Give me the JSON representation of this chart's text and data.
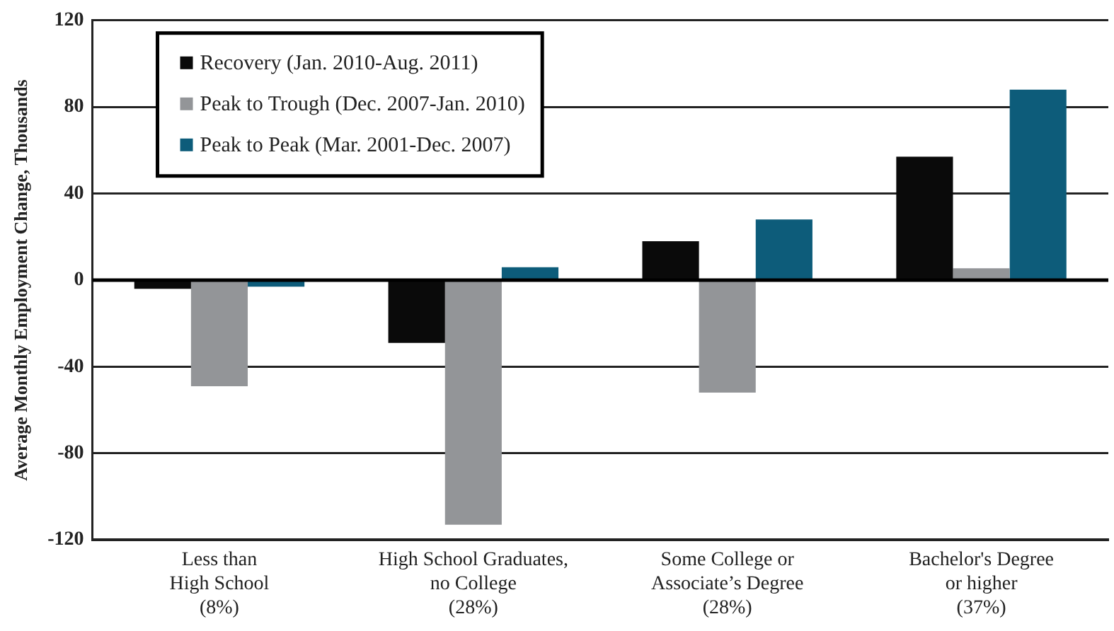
{
  "chart_data": {
    "type": "bar",
    "ylabel": "Average Monthly Employment Change, Thousands",
    "categories": [
      "Less than\nHigh School\n(8%)",
      "High School Graduates,\nno College\n(28%)",
      "Some College or\nAssociate’s Degree\n(28%)",
      "Bachelor's Degree\nor higher\n(37%)"
    ],
    "series": [
      {
        "name": "Recovery (Jan. 2010-Aug. 2011)",
        "color": "#0a0a0a",
        "values": [
          -4,
          -29,
          18,
          57
        ]
      },
      {
        "name": "Peak to Trough (Dec. 2007-Jan. 2010)",
        "color": "#939598",
        "values": [
          -49,
          -113,
          -52,
          5.5
        ]
      },
      {
        "name": "Peak to Peak (Mar. 2001-Dec. 2007)",
        "color": "#0d5c7a",
        "values": [
          -3,
          6,
          28,
          88
        ]
      }
    ],
    "ylim": [
      -120,
      120
    ],
    "yticks": [
      -120,
      -80,
      -40,
      0,
      40,
      80,
      120
    ],
    "grid": "y",
    "legend": "top left"
  }
}
